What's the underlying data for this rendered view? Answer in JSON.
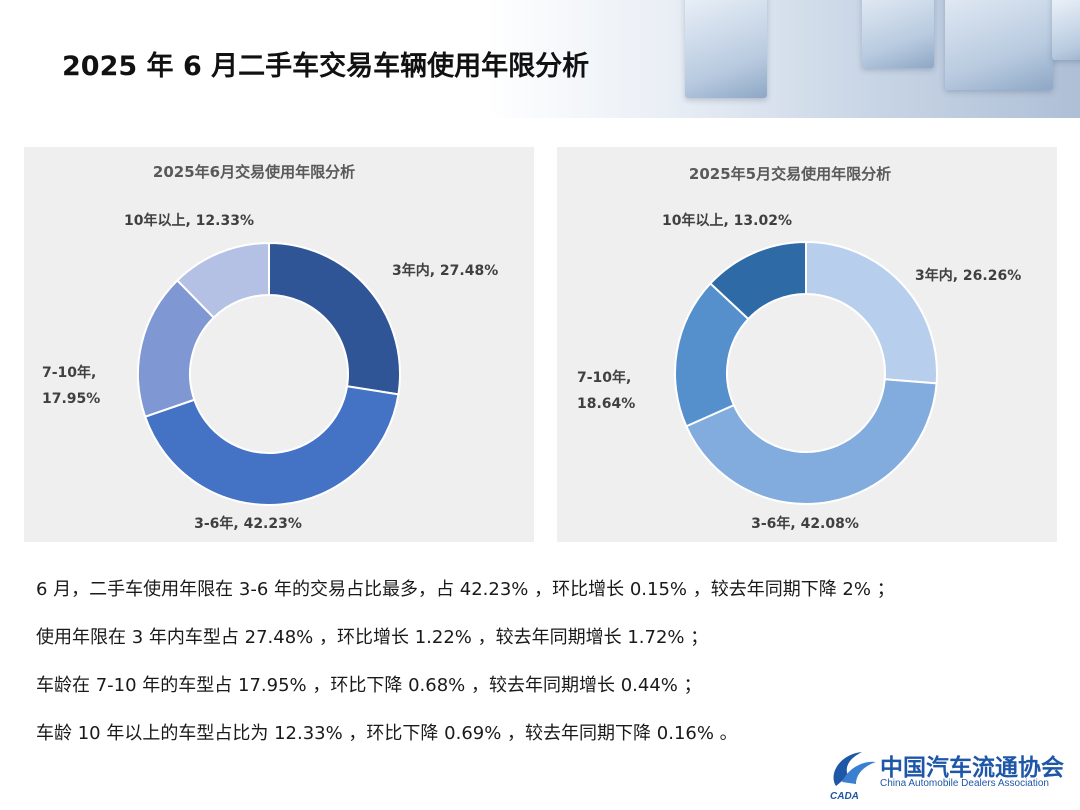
{
  "page": {
    "title": "2025 年 6 月二手车交易车辆使用年限分析"
  },
  "charts": {
    "june": {
      "title": "2025年6月交易使用年限分析",
      "labels": [
        {
          "l1": "3年内, 27.48%",
          "l2": ""
        },
        {
          "l1": "3-6年, 42.23%",
          "l2": ""
        },
        {
          "l1": "7-10年,",
          "l2": "17.95%"
        },
        {
          "l1": "10年以上, 12.33%",
          "l2": ""
        }
      ]
    },
    "may": {
      "title": "2025年5月交易使用年限分析",
      "labels": [
        {
          "l1": "3年内, 26.26%",
          "l2": ""
        },
        {
          "l1": "3-6年, 42.08%",
          "l2": ""
        },
        {
          "l1": "7-10年,",
          "l2": "18.64%"
        },
        {
          "l1": "10年以上, 13.02%",
          "l2": ""
        }
      ]
    }
  },
  "chart_data": [
    {
      "type": "pie",
      "title": "2025年6月交易使用年限分析",
      "categories": [
        "3年内",
        "3-6年",
        "7-10年",
        "10年以上"
      ],
      "values": [
        27.48,
        42.23,
        17.95,
        12.33
      ],
      "unit": "%",
      "colors": [
        "#2f5597",
        "#4472c4",
        "#7f97d2",
        "#b4c1e4"
      ],
      "donut": true
    },
    {
      "type": "pie",
      "title": "2025年5月交易使用年限分析",
      "categories": [
        "3年内",
        "3-6年",
        "7-10年",
        "10年以上"
      ],
      "values": [
        26.26,
        42.08,
        18.64,
        13.02
      ],
      "unit": "%",
      "colors": [
        "#b7cfed",
        "#82acdd",
        "#558fcc",
        "#2e6aa6"
      ],
      "donut": true
    }
  ],
  "notes": [
    "6 月，二手车使用年限在 3-6 年的交易占比最多，占 42.23% ，环比增长 0.15% ，较去年同期下降 2% ；",
    "使用年限在 3 年内车型占 27.48% ，环比增长 1.22% ，较去年同期增长 1.72% ；",
    "车龄在 7-10 年的车型占 17.95% ，环比下降 0.68% ，较去年同期增长 0.44% ；",
    "车龄 10 年以上的车型占比为 12.33% ，环比下降 0.69% ，较去年同期下降 0.16% 。"
  ],
  "logo": {
    "cn": "中国汽车流通协会",
    "en": "China Automobile Dealers Association",
    "mark": "CADA"
  }
}
